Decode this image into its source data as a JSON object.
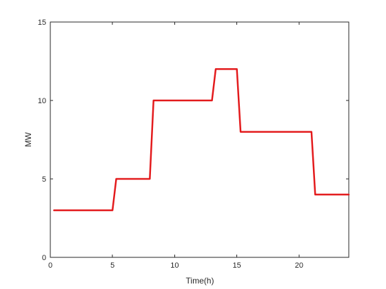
{
  "chart_data": {
    "type": "line",
    "title": "",
    "xlabel": "Time(h)",
    "ylabel": "MW",
    "xlim": [
      0,
      24
    ],
    "ylim": [
      0,
      15
    ],
    "xticks": [
      0,
      5,
      10,
      15,
      20
    ],
    "yticks": [
      0,
      5,
      10,
      15
    ],
    "grid": false,
    "legend": "none",
    "series": [
      {
        "color": "#e31a1c",
        "x": [
          0.3,
          5,
          5.3,
          8,
          8.3,
          13,
          13.3,
          15,
          15.3,
          21,
          21.3,
          24
        ],
        "y": [
          3,
          3,
          5,
          5,
          10,
          10,
          12,
          12,
          8,
          8,
          4,
          4
        ]
      }
    ]
  }
}
